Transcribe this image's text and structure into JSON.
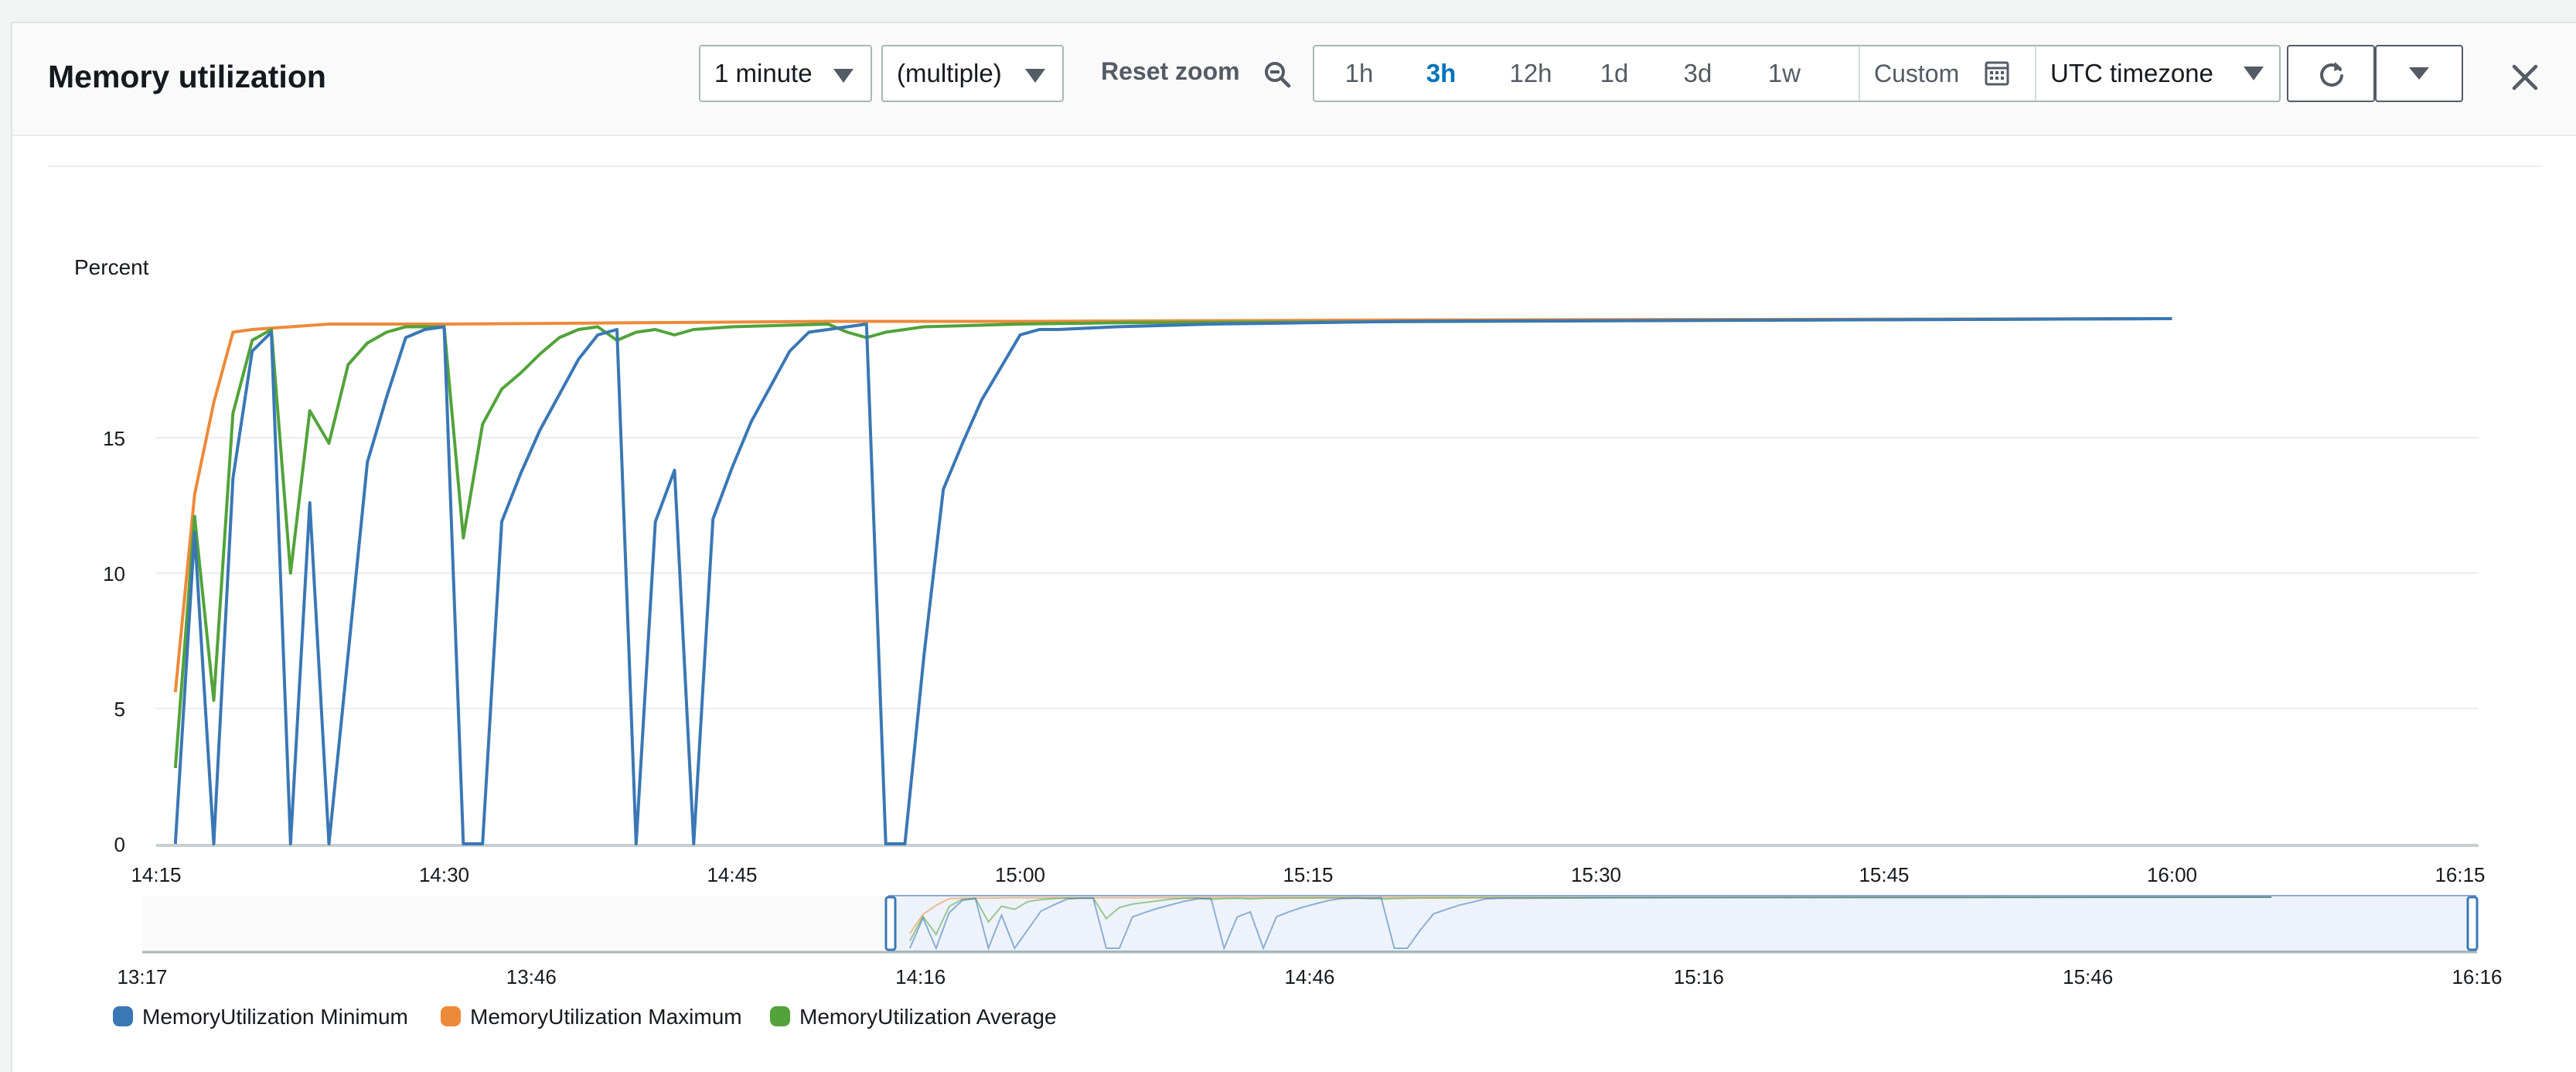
{
  "header": {
    "title": "Memory utilization",
    "period_select": "1 minute",
    "stat_select": "(multiple)",
    "reset_zoom": "Reset zoom",
    "ranges": [
      "1h",
      "3h",
      "12h",
      "1d",
      "3d",
      "1w"
    ],
    "active_range": "3h",
    "custom": "Custom",
    "timezone": "UTC timezone"
  },
  "icons": {
    "zoom_out": "zoom-out-icon",
    "calendar": "calendar-icon",
    "refresh": "refresh-icon",
    "more": "caret-down-icon",
    "close": "close-icon"
  },
  "colors": {
    "minimum": "#3a77b5",
    "maximum": "#ed8a3a",
    "average": "#52a33a"
  },
  "chart_data": {
    "type": "line",
    "ylabel": "Percent",
    "yticks": [
      0,
      5,
      10,
      15
    ],
    "ylim": [
      0,
      20
    ],
    "xlim": [
      "14:15",
      "16:15"
    ],
    "xticks": [
      "14:15",
      "14:30",
      "14:45",
      "15:00",
      "15:15",
      "15:30",
      "15:45",
      "16:00",
      "16:15"
    ],
    "legend_position": "bottom-left",
    "grid": true,
    "series": [
      {
        "name": "MemoryUtilization Minimum",
        "x_minutes": [
          16,
          17,
          18,
          19,
          20,
          21,
          22,
          23,
          24,
          25,
          26,
          27,
          28,
          29,
          30,
          31,
          32,
          33,
          34,
          35,
          36,
          37,
          38,
          39,
          40,
          41,
          42,
          43,
          44,
          45,
          46,
          47,
          48,
          49,
          50,
          51,
          52,
          53,
          54,
          55,
          56,
          57,
          58,
          59,
          60,
          61,
          62,
          65,
          70,
          80,
          120
        ],
        "values": [
          0,
          11.5,
          0,
          13.5,
          18.2,
          18.9,
          0,
          12.6,
          0,
          7,
          14.1,
          16.5,
          18.7,
          19.0,
          19.1,
          0,
          0,
          11.9,
          13.7,
          15.3,
          16.6,
          17.9,
          18.8,
          19.0,
          0,
          11.9,
          13.8,
          0,
          12.0,
          13.9,
          15.6,
          16.9,
          18.2,
          18.9,
          19.0,
          19.1,
          19.2,
          0,
          0,
          7,
          13.1,
          14.8,
          16.4,
          17.6,
          18.8,
          19.0,
          19.0,
          19.1,
          19.2,
          19.3,
          19.4
        ]
      },
      {
        "name": "MemoryUtilization Maximum",
        "x_minutes": [
          16,
          17,
          18,
          19,
          20,
          22,
          24,
          30,
          40,
          50,
          60,
          80,
          120
        ],
        "values": [
          5.6,
          12.9,
          16.3,
          18.9,
          19.0,
          19.1,
          19.2,
          19.2,
          19.25,
          19.3,
          19.3,
          19.35,
          19.4
        ]
      },
      {
        "name": "MemoryUtilization Average",
        "x_minutes": [
          16,
          17,
          18,
          19,
          20,
          21,
          22,
          23,
          24,
          25,
          26,
          27,
          28,
          29,
          30,
          31,
          32,
          33,
          34,
          35,
          36,
          37,
          38,
          39,
          40,
          41,
          42,
          43,
          44,
          45,
          50,
          51,
          52,
          53,
          54,
          55,
          60,
          65,
          120
        ],
        "values": [
          2.8,
          12.1,
          5.3,
          15.9,
          18.6,
          19.0,
          10.0,
          16.0,
          14.8,
          17.7,
          18.5,
          18.9,
          19.1,
          19.1,
          19.1,
          11.3,
          15.5,
          16.8,
          17.4,
          18.1,
          18.7,
          19.0,
          19.1,
          18.6,
          18.9,
          19.0,
          18.8,
          19.0,
          19.05,
          19.1,
          19.2,
          18.9,
          18.7,
          18.9,
          19.0,
          19.1,
          19.2,
          19.25,
          19.4
        ]
      }
    ],
    "navigator": {
      "xticks": [
        "13:17",
        "13:46",
        "14:16",
        "14:46",
        "15:16",
        "15:46",
        "16:16"
      ],
      "selection": [
        "14:15",
        "16:15"
      ]
    }
  }
}
